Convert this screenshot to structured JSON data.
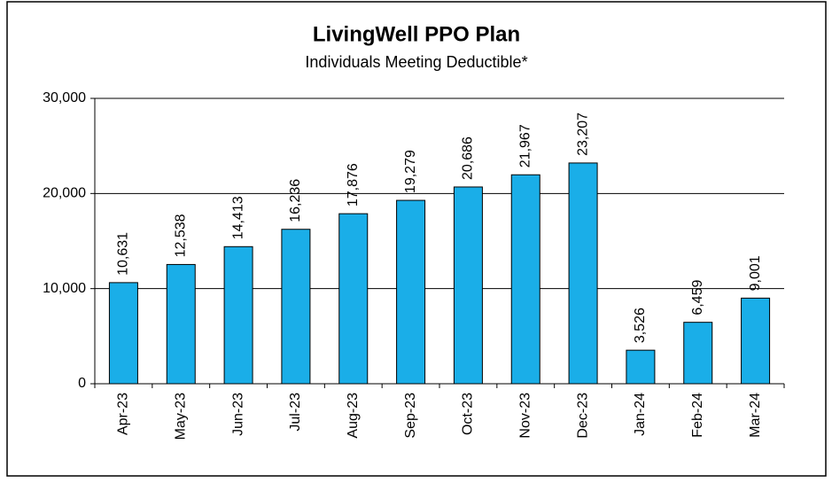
{
  "chart_data": {
    "type": "bar",
    "title": "LivingWell PPO Plan",
    "subtitle": "Individuals Meeting Deductible*",
    "categories": [
      "Apr-23",
      "May-23",
      "Jun-23",
      "Jul-23",
      "Aug-23",
      "Sep-23",
      "Oct-23",
      "Nov-23",
      "Dec-23",
      "Jan-24",
      "Feb-24",
      "Mar-24"
    ],
    "values": [
      10631,
      12538,
      14413,
      16236,
      17876,
      19279,
      20686,
      21967,
      23207,
      3526,
      6459,
      9001
    ],
    "value_labels": [
      "10,631",
      "12,538",
      "14,413",
      "16,236",
      "17,876",
      "19,279",
      "20,686",
      "21,967",
      "23,207",
      "3,526",
      "6,459",
      "9,001"
    ],
    "color": "#1aaee8",
    "ylim": [
      0,
      30000
    ],
    "yticks": [
      0,
      {
        "value": 10000,
        "label": "10,000"
      },
      {
        "value": 20000,
        "label": "20,000"
      },
      {
        "value": 30000,
        "label": "30,000"
      }
    ],
    "grid": true
  }
}
